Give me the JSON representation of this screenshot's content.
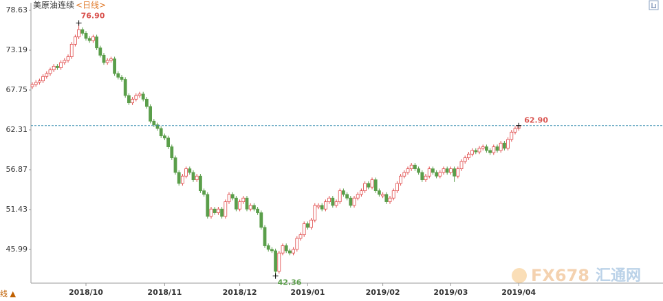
{
  "chart_data": {
    "type": "candlestick",
    "title": "美原油连续",
    "subtitle": "<日线>",
    "ylim": [
      41.39,
      79.57
    ],
    "yticks": [
      45.99,
      51.43,
      56.87,
      62.31,
      67.75,
      73.19,
      78.63
    ],
    "up_color": "#e04a4a",
    "down_color": "#5a9e4a",
    "categories": [
      null,
      null,
      null,
      null,
      null,
      null,
      null,
      null,
      null,
      null,
      null,
      null,
      null,
      null,
      null,
      "2018/10",
      null,
      null,
      null,
      null,
      null,
      null,
      null,
      null,
      null,
      null,
      null,
      null,
      null,
      null,
      null,
      null,
      null,
      null,
      null,
      null,
      null,
      "2018/11",
      null,
      null,
      null,
      null,
      null,
      null,
      null,
      null,
      null,
      null,
      null,
      null,
      null,
      null,
      null,
      null,
      null,
      null,
      null,
      null,
      "2018/12",
      null,
      null,
      null,
      null,
      null,
      null,
      null,
      null,
      null,
      null,
      null,
      null,
      null,
      null,
      null,
      null,
      null,
      null,
      "2019/01",
      null,
      null,
      null,
      null,
      null,
      null,
      null,
      null,
      null,
      null,
      null,
      null,
      null,
      null,
      null,
      null,
      null,
      null,
      null,
      null,
      "2019/02",
      null,
      null,
      null,
      null,
      null,
      null,
      null,
      null,
      null,
      null,
      null,
      null,
      null,
      null,
      null,
      null,
      null,
      null,
      "2019/03",
      null,
      null,
      null,
      null,
      null,
      null,
      null,
      null,
      null,
      null,
      null,
      null,
      null,
      null,
      null,
      null,
      null,
      null,
      "2019/04"
    ],
    "ohlc": [
      [
        68.2,
        68.8,
        67.9,
        68.5
      ],
      [
        68.5,
        69.1,
        68.2,
        68.8
      ],
      [
        68.8,
        69.3,
        68.5,
        69
      ],
      [
        69,
        69.9,
        68.7,
        69.6
      ],
      [
        69.6,
        70.3,
        69.3,
        70
      ],
      [
        70,
        70.8,
        69.7,
        70.5
      ],
      [
        70.5,
        71.3,
        70.2,
        71
      ],
      [
        71,
        71.3,
        70.5,
        70.8
      ],
      [
        70.8,
        71.8,
        70.5,
        71.5
      ],
      [
        71.5,
        72.1,
        71.2,
        71.8
      ],
      [
        71.8,
        72.6,
        71.5,
        72.3
      ],
      [
        72.3,
        74.3,
        72,
        74
      ],
      [
        74,
        75.3,
        73.7,
        75
      ],
      [
        75,
        76.9,
        74.7,
        76
      ],
      [
        76,
        76.3,
        75.2,
        75.5
      ],
      [
        75.5,
        75.8,
        74.5,
        74.8
      ],
      [
        74.8,
        75.1,
        74.2,
        74.5
      ],
      [
        74.5,
        75.3,
        74.2,
        75
      ],
      [
        75,
        75.3,
        73.2,
        73.5
      ],
      [
        73.5,
        73.8,
        72.2,
        72.5
      ],
      [
        72.5,
        72.8,
        71.2,
        71.5
      ],
      [
        71.5,
        72.1,
        71.2,
        71.8
      ],
      [
        71.8,
        72.3,
        71.5,
        72
      ],
      [
        72,
        72.3,
        69.7,
        70
      ],
      [
        70,
        70.3,
        69.2,
        69.5
      ],
      [
        69.5,
        69.8,
        68.9,
        69.2
      ],
      [
        69.2,
        69.5,
        66.7,
        67
      ],
      [
        67,
        67.3,
        65.7,
        66
      ],
      [
        66,
        66.8,
        65.7,
        66.5
      ],
      [
        66.5,
        67.3,
        66.2,
        67
      ],
      [
        67,
        67.5,
        66.7,
        67.2
      ],
      [
        67.2,
        67.5,
        66.2,
        66.5
      ],
      [
        66.5,
        66.8,
        65.2,
        65.5
      ],
      [
        65.5,
        65.8,
        63.2,
        63.5
      ],
      [
        63.5,
        63.8,
        62.7,
        63
      ],
      [
        63,
        63.3,
        62.2,
        62.5
      ],
      [
        62.5,
        62.8,
        61.2,
        61.5
      ],
      [
        61.5,
        61.8,
        60.9,
        61.2
      ],
      [
        61.2,
        61.5,
        59.7,
        60
      ],
      [
        60,
        60.3,
        58.2,
        58.5
      ],
      [
        58.5,
        58.8,
        56.2,
        56.5
      ],
      [
        56.5,
        56.8,
        54.7,
        55
      ],
      [
        55,
        56.3,
        54.7,
        56
      ],
      [
        56,
        57.3,
        55.7,
        57
      ],
      [
        57,
        57.3,
        56.2,
        56.5
      ],
      [
        56.5,
        56.8,
        55.2,
        55.5
      ],
      [
        55.5,
        56.3,
        55.2,
        56
      ],
      [
        56,
        56.3,
        53.7,
        54
      ],
      [
        54,
        54.3,
        53.2,
        53.5
      ],
      [
        53.5,
        53.8,
        50.2,
        50.5
      ],
      [
        50.5,
        51.8,
        50.2,
        51.5
      ],
      [
        51.5,
        51.8,
        50.7,
        51
      ],
      [
        51,
        51.8,
        50.7,
        51.5
      ],
      [
        51.5,
        51.8,
        50.2,
        50.5
      ],
      [
        50.5,
        52.8,
        50.2,
        52.5
      ],
      [
        52.5,
        53.8,
        52.2,
        53.5
      ],
      [
        53.5,
        53.8,
        52.7,
        53
      ],
      [
        53,
        53.3,
        51.2,
        51.5
      ],
      [
        51.5,
        52.8,
        51.2,
        52.5
      ],
      [
        52.5,
        53.3,
        52.2,
        53
      ],
      [
        53,
        53.3,
        51.2,
        51.5
      ],
      [
        51.5,
        52.3,
        51.2,
        52
      ],
      [
        52,
        52.3,
        51.2,
        51.5
      ],
      [
        51.5,
        51.8,
        50.7,
        51
      ],
      [
        51,
        51.3,
        48.7,
        49
      ],
      [
        49,
        49.3,
        46.2,
        46.5
      ],
      [
        46.5,
        46.8,
        45.7,
        46
      ],
      [
        46,
        46.3,
        45.5,
        45.8
      ],
      [
        45.8,
        46.1,
        42.36,
        43
      ],
      [
        43,
        45.8,
        42.7,
        45.5
      ],
      [
        45.5,
        46.8,
        45.2,
        46.5
      ],
      [
        46.5,
        46.8,
        45.5,
        45.8
      ],
      [
        45.8,
        46.1,
        45.2,
        45.5
      ],
      [
        45.5,
        46.3,
        45.2,
        46
      ],
      [
        46,
        47.8,
        45.7,
        47.5
      ],
      [
        47.5,
        48.3,
        47.2,
        48
      ],
      [
        48,
        49.8,
        47.7,
        49.5
      ],
      [
        49.5,
        49.8,
        48.7,
        49
      ],
      [
        49,
        50.3,
        48.7,
        50
      ],
      [
        50,
        52.3,
        49.7,
        52
      ],
      [
        51.8,
        52.3,
        51.5,
        52
      ],
      [
        52,
        52.3,
        51.2,
        51.5
      ],
      [
        51.5,
        52.8,
        51.2,
        52.5
      ],
      [
        52.5,
        53.3,
        52.2,
        53
      ],
      [
        53,
        53.3,
        51.7,
        52
      ],
      [
        52,
        52.8,
        51.7,
        52.5
      ],
      [
        52.5,
        54.3,
        52.2,
        54
      ],
      [
        54,
        54.3,
        53.2,
        53.5
      ],
      [
        53.5,
        53.8,
        52.7,
        53
      ],
      [
        53,
        53.3,
        51.7,
        52
      ],
      [
        52,
        53.3,
        51.7,
        53
      ],
      [
        53,
        53.8,
        52.7,
        53.5
      ],
      [
        53.5,
        54.3,
        53.2,
        54
      ],
      [
        54,
        55.3,
        53.7,
        55
      ],
      [
        55,
        55.3,
        54.2,
        54.5
      ],
      [
        54.5,
        55.8,
        54.2,
        55.5
      ],
      [
        55.5,
        55.8,
        53.7,
        54
      ],
      [
        54,
        54.3,
        53.2,
        53.5
      ],
      [
        53.3,
        53.8,
        53,
        53.5
      ],
      [
        53.5,
        53.8,
        52.2,
        52.5
      ],
      [
        52.5,
        53.3,
        52.2,
        53
      ],
      [
        53,
        54.3,
        52.7,
        54
      ],
      [
        54,
        55.3,
        53.7,
        55
      ],
      [
        55,
        56.3,
        54.7,
        56
      ],
      [
        56,
        56.8,
        55.7,
        56.5
      ],
      [
        56.5,
        57.3,
        56.2,
        57
      ],
      [
        57,
        57.8,
        56.7,
        57.5
      ],
      [
        57.5,
        57.8,
        56.7,
        57
      ],
      [
        57,
        57.3,
        56.2,
        56.5
      ],
      [
        56.5,
        56.8,
        55.2,
        55.5
      ],
      [
        55.5,
        56.3,
        55.2,
        56
      ],
      [
        56,
        57.3,
        55.7,
        57
      ],
      [
        57,
        57.3,
        56.2,
        56.5
      ],
      [
        56.5,
        56.8,
        55.7,
        56
      ],
      [
        56,
        56.8,
        55.7,
        56.5
      ],
      [
        56.5,
        57.3,
        56.2,
        57
      ],
      [
        57,
        57.3,
        56.2,
        56.5
      ],
      [
        56.5,
        57.3,
        56.2,
        57
      ],
      [
        57,
        57.3,
        55.2,
        56
      ],
      [
        56,
        57.3,
        55.7,
        57
      ],
      [
        57,
        58.3,
        56.7,
        58
      ],
      [
        58,
        58.8,
        57.7,
        58.5
      ],
      [
        58.5,
        59.3,
        58.2,
        59
      ],
      [
        59,
        59.8,
        58.7,
        59.5
      ],
      [
        59.5,
        59.8,
        59,
        59.3
      ],
      [
        59.3,
        60.1,
        59,
        59.8
      ],
      [
        59.8,
        60.3,
        59.5,
        60
      ],
      [
        60,
        60.3,
        59.2,
        59.5
      ],
      [
        59.5,
        59.8,
        58.9,
        59.2
      ],
      [
        59.2,
        60.3,
        58.9,
        60
      ],
      [
        60,
        60.3,
        59.2,
        59.5
      ],
      [
        59.5,
        60.8,
        59.2,
        60.5
      ],
      [
        60.5,
        60.8,
        59.5,
        59.8
      ],
      [
        59.8,
        61.3,
        59.5,
        61
      ],
      [
        61,
        62.3,
        60.7,
        62
      ],
      [
        62,
        62.8,
        61.7,
        62.5
      ],
      [
        62.5,
        62.9,
        62.2,
        62.9
      ]
    ],
    "annotations": [
      {
        "text": "76.90",
        "value": 76.9,
        "color": "#d9534f"
      },
      {
        "text": "42.36",
        "value": 42.36,
        "color": "#5a9e4a"
      },
      {
        "text": "62.90",
        "value": 62.9,
        "color": "#d9534f"
      }
    ],
    "corner_label": "线 ▲",
    "watermark": {
      "brand": "FX678",
      "name": "汇通网"
    }
  }
}
